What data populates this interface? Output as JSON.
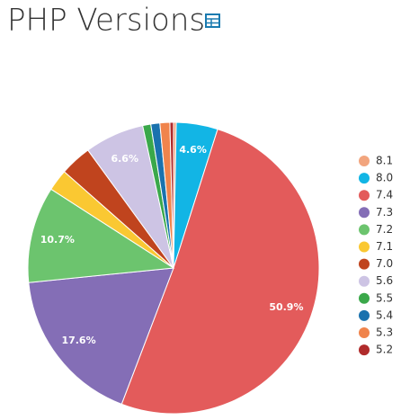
{
  "chart_data": {
    "type": "pie",
    "title": "PHP Versions",
    "categories": [
      "8.1",
      "8.0",
      "7.4",
      "7.3",
      "7.2",
      "7.1",
      "7.0",
      "5.6",
      "5.5",
      "5.4",
      "5.3",
      "5.2"
    ],
    "values": [
      0.3,
      4.6,
      50.9,
      17.6,
      10.7,
      2.4,
      3.5,
      6.6,
      0.9,
      1.0,
      1.1,
      0.4
    ],
    "value_labels": [
      null,
      "4.6%",
      "50.9%",
      "17.6%",
      "10.7%",
      null,
      null,
      "6.6%",
      null,
      null,
      null,
      null
    ],
    "colors": [
      "#f2a57e",
      "#12b5e5",
      "#e35b5b",
      "#846eb6",
      "#6cc46e",
      "#fac832",
      "#c0441e",
      "#cdc4e4",
      "#3aa84a",
      "#1a72ae",
      "#f0844c",
      "#b02b2b"
    ]
  }
}
